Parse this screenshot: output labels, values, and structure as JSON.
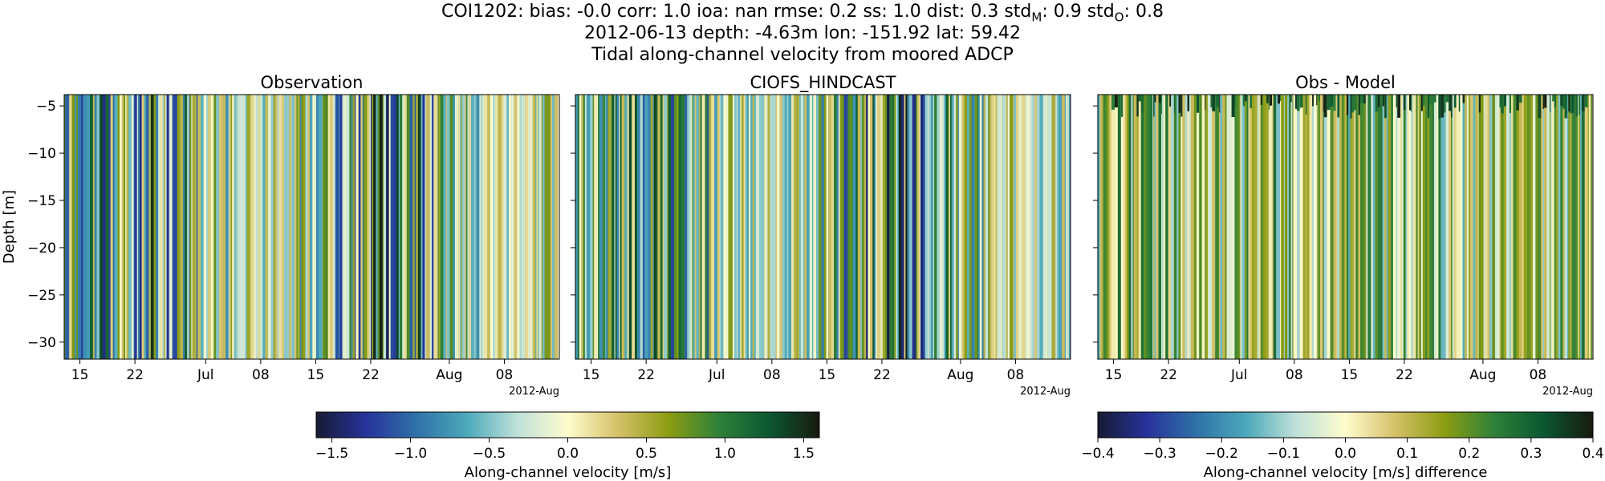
{
  "figure": {
    "title_line1": "COI1202: bias: -0.0  corr: 1.0  ioa: nan  rmse: 0.2  ss: 1.0  dist: 0.3  std",
    "title_line1_sub1": "M",
    "title_line1_mid": ": 0.9  std",
    "title_line1_sub2": "O",
    "title_line1_end": ": 0.8",
    "title_line2": "2012-06-13 depth: -4.63m lon: -151.92 lat: 59.42",
    "title_line3": "Tidal along-channel velocity from moored ADCP"
  },
  "chart_data": [
    {
      "type": "heatmap",
      "title": "Observation",
      "ylabel": "Depth [m]",
      "xlabel": "",
      "x_ticklabels": [
        "15",
        "22",
        "Jul",
        "08",
        "15",
        "22",
        "Aug",
        "08"
      ],
      "x_offset_label": "2012-Aug",
      "y_ticks": [
        -5,
        -10,
        -15,
        -20,
        -25,
        -30
      ],
      "ylim": [
        -31.8,
        -3.8
      ],
      "xlim": [
        "2012-06-13",
        "2012-08-15"
      ],
      "colormap": "delta",
      "clim": [
        -1.6,
        1.6
      ]
    },
    {
      "type": "heatmap",
      "title": "CIOFS_HINDCAST",
      "ylabel": "",
      "x_ticklabels": [
        "15",
        "22",
        "Jul",
        "08",
        "15",
        "22",
        "Aug",
        "08"
      ],
      "x_offset_label": "2012-Aug",
      "ylim": [
        -31.8,
        -3.8
      ],
      "xlim": [
        "2012-06-13",
        "2012-08-15"
      ],
      "colormap": "delta",
      "clim": [
        -1.6,
        1.6
      ]
    },
    {
      "type": "heatmap",
      "title": "Obs - Model",
      "ylabel": "",
      "x_ticklabels": [
        "15",
        "22",
        "Jul",
        "08",
        "15",
        "22",
        "Aug",
        "08"
      ],
      "x_offset_label": "2012-Aug",
      "ylim": [
        -31.8,
        -3.8
      ],
      "xlim": [
        "2012-06-13",
        "2012-08-15"
      ],
      "colormap": "delta",
      "clim": [
        -0.4,
        0.4
      ]
    }
  ],
  "colorbars": [
    {
      "label": "Along-channel velocity [m/s]",
      "ticks": [
        -1.5,
        -1.0,
        -0.5,
        0.0,
        0.5,
        1.0,
        1.5
      ],
      "tick_labels": [
        "−1.5",
        "−1.0",
        "−0.5",
        "0.0",
        "0.5",
        "1.0",
        "1.5"
      ],
      "range": [
        -1.6,
        1.6
      ]
    },
    {
      "label": "Along-channel velocity [m/s] difference",
      "ticks": [
        -0.4,
        -0.3,
        -0.2,
        -0.1,
        0.0,
        0.1,
        0.2,
        0.3,
        0.4
      ],
      "tick_labels": [
        "−0.4",
        "−0.3",
        "−0.2",
        "−0.1",
        "0.0",
        "0.1",
        "0.2",
        "0.3",
        "0.4"
      ],
      "range": [
        -0.4,
        0.4
      ]
    }
  ],
  "colormap_stops": [
    "#161b33",
    "#27339b",
    "#2f72a8",
    "#4ca9bb",
    "#bfe1d8",
    "#fefccd",
    "#d5c168",
    "#8c9d12",
    "#2e8138",
    "#0b5732",
    "#181a0e"
  ]
}
